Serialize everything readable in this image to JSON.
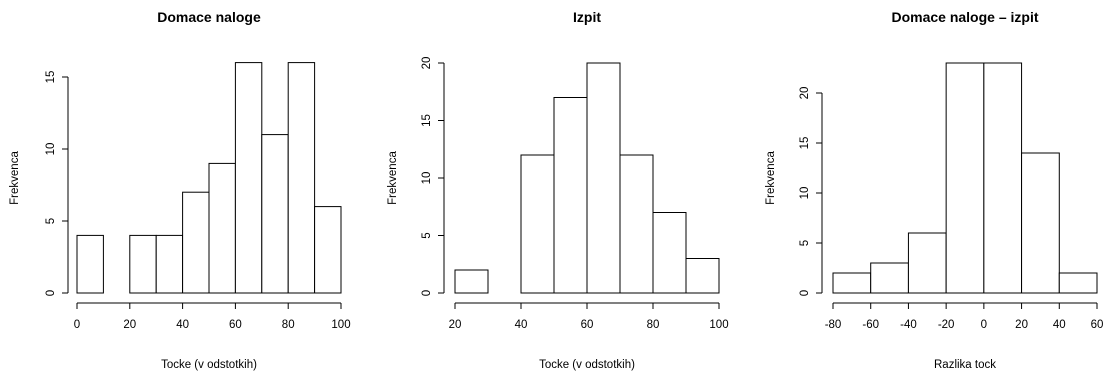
{
  "chart_data": [
    {
      "type": "bar",
      "title": "Domace naloge",
      "xlabel": "Tocke (v odstotkih)",
      "ylabel": "Frekvenca",
      "bins": [
        [
          0,
          10
        ],
        [
          10,
          20
        ],
        [
          20,
          30
        ],
        [
          30,
          40
        ],
        [
          40,
          50
        ],
        [
          50,
          60
        ],
        [
          60,
          70
        ],
        [
          70,
          80
        ],
        [
          80,
          90
        ],
        [
          90,
          100
        ]
      ],
      "values": [
        4,
        0,
        4,
        4,
        7,
        9,
        16,
        11,
        16,
        6
      ],
      "xlim": [
        0,
        100
      ],
      "ylim": [
        0,
        16
      ],
      "xticks": [
        0,
        20,
        40,
        60,
        80,
        100
      ],
      "yticks": [
        0,
        5,
        10,
        15
      ]
    },
    {
      "type": "bar",
      "title": "Izpit",
      "xlabel": "Tocke (v odstotkih)",
      "ylabel": "Frekvenca",
      "bins": [
        [
          20,
          30
        ],
        [
          30,
          40
        ],
        [
          40,
          50
        ],
        [
          50,
          60
        ],
        [
          60,
          70
        ],
        [
          70,
          80
        ],
        [
          80,
          90
        ],
        [
          90,
          100
        ]
      ],
      "values": [
        2,
        0,
        12,
        17,
        20,
        12,
        7,
        3
      ],
      "xlim": [
        20,
        100
      ],
      "ylim": [
        0,
        20
      ],
      "xticks": [
        20,
        40,
        60,
        80,
        100
      ],
      "yticks": [
        0,
        5,
        10,
        15,
        20
      ]
    },
    {
      "type": "bar",
      "title": "Domace naloge – izpit",
      "xlabel": "Razlika tock",
      "ylabel": "Frekvenca",
      "bins": [
        [
          -80,
          -60
        ],
        [
          -60,
          -40
        ],
        [
          -40,
          -20
        ],
        [
          -20,
          0
        ],
        [
          0,
          20
        ],
        [
          20,
          40
        ],
        [
          40,
          60
        ]
      ],
      "values": [
        2,
        3,
        6,
        23,
        23,
        14,
        2
      ],
      "xlim": [
        -80,
        60
      ],
      "ylim": [
        0,
        23
      ],
      "xticks": [
        -80,
        -60,
        -40,
        -20,
        0,
        20,
        40,
        60
      ],
      "yticks": [
        0,
        5,
        10,
        15,
        20
      ]
    }
  ]
}
